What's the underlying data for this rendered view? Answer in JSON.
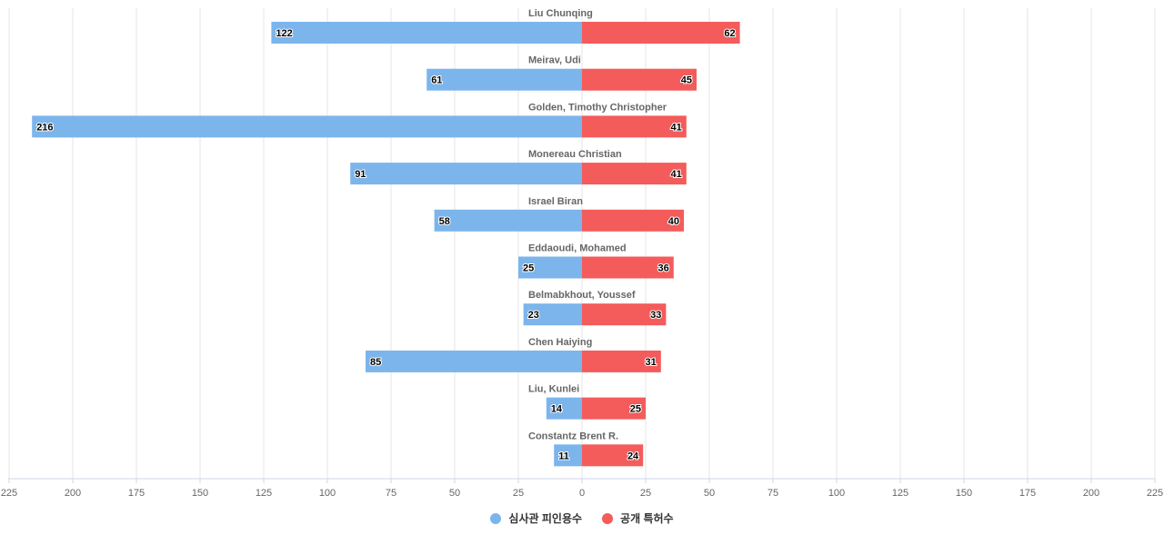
{
  "colors": {
    "left": "#7cb5ec",
    "right": "#f45b5b"
  },
  "legend": {
    "left_label": "심사관 피인용수",
    "right_label": "공개 특허수"
  },
  "chart_data": {
    "type": "bar",
    "orientation": "horizontal-diverging",
    "categories": [
      "Liu Chunqing",
      "Meirav, Udi",
      "Golden, Timothy Christopher",
      "Monereau Christian",
      "Israel Biran",
      "Eddaoudi, Mohamed",
      "Belmabkhout, Youssef",
      "Chen Haiying",
      "Liu, Kunlei",
      "Constantz Brent R."
    ],
    "series": [
      {
        "name": "심사관 피인용수",
        "side": "left",
        "values": [
          122,
          61,
          216,
          91,
          58,
          25,
          23,
          85,
          14,
          11
        ]
      },
      {
        "name": "공개 특허수",
        "side": "right",
        "values": [
          62,
          45,
          41,
          41,
          40,
          36,
          33,
          31,
          25,
          24
        ]
      }
    ],
    "xlim": [
      -225,
      225
    ],
    "xticks": [
      225,
      200,
      175,
      150,
      125,
      100,
      75,
      50,
      25,
      0,
      25,
      50,
      75,
      100,
      125,
      150,
      175,
      200,
      225
    ],
    "grid": true,
    "legend_position": "bottom-center"
  }
}
